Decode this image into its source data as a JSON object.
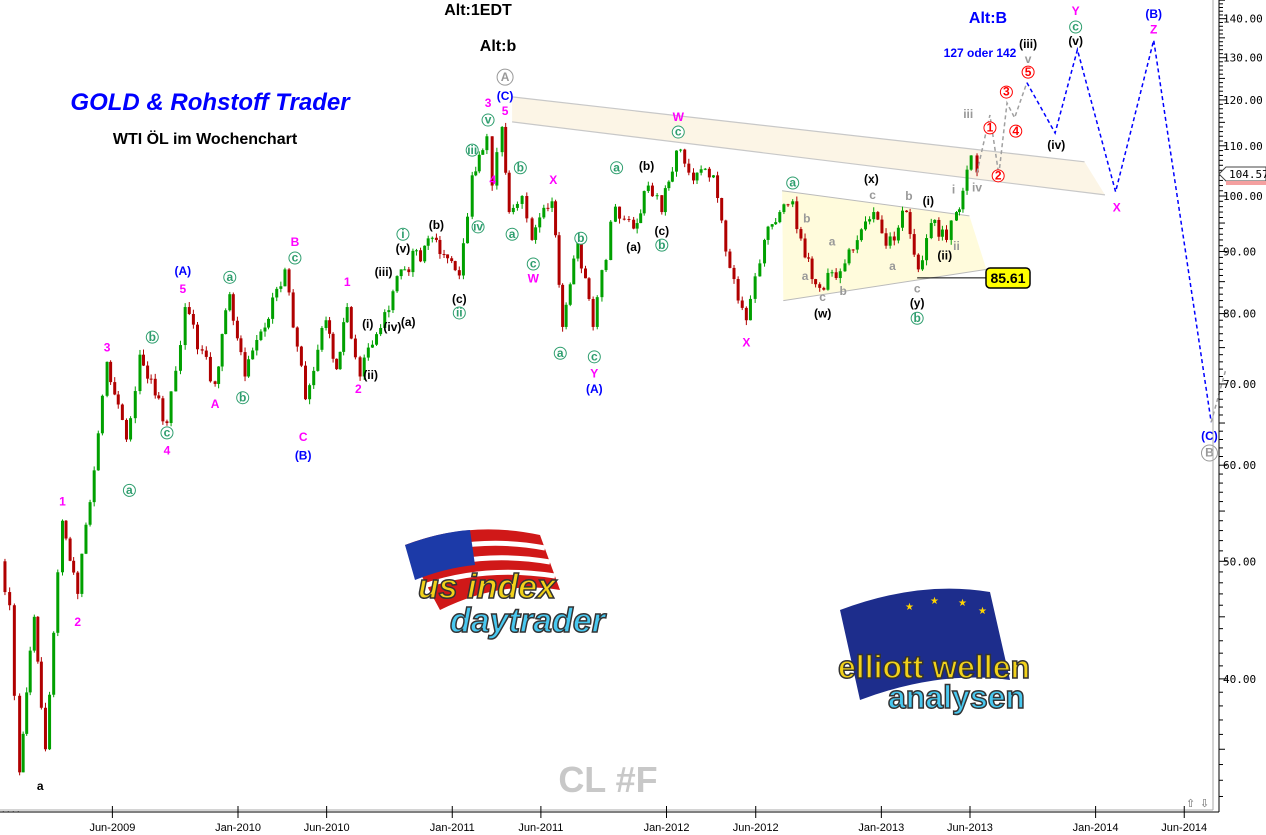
{
  "header": {
    "title": "GOLD & Rohstoff Trader",
    "subtitle": "WTI ÖL im Wochenchart",
    "alt_1": "Alt:1EDT",
    "alt_2": "Alt:b",
    "alt_3": "Alt:B",
    "target_note": "127 oder 142",
    "symbol": "CL #F",
    "level_box": "85.61",
    "last_price": "104.57",
    "scroll_up": "⇧",
    "scroll_down": "⇩",
    "ellipsis": ". . . ."
  },
  "logos": {
    "left": {
      "line1": "us index",
      "line2": "daytrader"
    },
    "right": {
      "line1": "elliott wellen",
      "line2": "analysen"
    }
  },
  "colors": {
    "up_candle": "#00a000",
    "down_candle": "#b00000",
    "magenta": "#ff00ff",
    "blue": "#0000ff",
    "green": "#2e9e6e",
    "gray": "#999999",
    "red": "#ff0000",
    "black": "#000000",
    "level_box_fill": "#ffff00"
  },
  "chart_data": {
    "type": "candlestick",
    "title": "GOLD & Rohstoff Trader",
    "subtitle": "WTI ÖL im Wochenchart",
    "scale": "log",
    "ylim": [
      30,
      145
    ],
    "y_ticks": [
      40,
      50,
      60,
      70,
      80,
      90,
      100,
      110,
      120,
      130,
      140
    ],
    "y_tick_labels": [
      "40.00",
      "50.00",
      "60.00",
      "70.00",
      "80.00",
      "90.00",
      "100.00",
      "110.00",
      "120.00",
      "130.00",
      "140.00"
    ],
    "x_ticks": [
      {
        "label": "Jun-2009",
        "date": "2009-06-01"
      },
      {
        "label": "Jan-2010",
        "date": "2010-01-01"
      },
      {
        "label": "Jun-2010",
        "date": "2010-06-01"
      },
      {
        "label": "Jan-2011",
        "date": "2011-01-01"
      },
      {
        "label": "Jun-2011",
        "date": "2011-06-01"
      },
      {
        "label": "Jan-2012",
        "date": "2012-01-01"
      },
      {
        "label": "Jun-2012",
        "date": "2012-06-01"
      },
      {
        "label": "Jan-2013",
        "date": "2013-01-01"
      },
      {
        "label": "Jun-2013",
        "date": "2013-06-01"
      },
      {
        "label": "Jan-2014",
        "date": "2014-01-01"
      },
      {
        "label": "Jun-2014",
        "date": "2014-06-01"
      }
    ],
    "grid": false,
    "last_price": 104.57,
    "support_level": 85.61,
    "price_path": [
      [
        "2008-11-22",
        50
      ],
      [
        "2008-12-08",
        46
      ],
      [
        "2008-12-25",
        33.5
      ],
      [
        "2009-01-19",
        45
      ],
      [
        "2009-02-07",
        35
      ],
      [
        "2009-03-08",
        54
      ],
      [
        "2009-04-03",
        47
      ],
      [
        "2009-05-23",
        73
      ],
      [
        "2009-06-25",
        63
      ],
      [
        "2009-07-18",
        74
      ],
      [
        "2009-09-02",
        65
      ],
      [
        "2009-10-03",
        81
      ],
      [
        "2009-11-23",
        70
      ],
      [
        "2009-12-18",
        83
      ],
      [
        "2010-01-13",
        71
      ],
      [
        "2010-03-22",
        87
      ],
      [
        "2010-04-26",
        68
      ],
      [
        "2010-05-31",
        79
      ],
      [
        "2010-06-18",
        72
      ],
      [
        "2010-07-06",
        81
      ],
      [
        "2010-07-28",
        71
      ],
      [
        "2010-10-06",
        87
      ],
      [
        "2010-12-05",
        92
      ],
      [
        "2011-01-13",
        86
      ],
      [
        "2011-02-04",
        104
      ],
      [
        "2011-03-01",
        112
      ],
      [
        "2011-03-10",
        102
      ],
      [
        "2011-03-27",
        114
      ],
      [
        "2011-04-08",
        97
      ],
      [
        "2011-04-30",
        100
      ],
      [
        "2011-05-17",
        92
      ],
      [
        "2011-06-20",
        99
      ],
      [
        "2011-07-08",
        78
      ],
      [
        "2011-08-03",
        92
      ],
      [
        "2011-08-29",
        78
      ],
      [
        "2011-10-06",
        98
      ],
      [
        "2011-11-06",
        94
      ],
      [
        "2011-12-01",
        102
      ],
      [
        "2011-12-24",
        97
      ],
      [
        "2012-01-18",
        109
      ],
      [
        "2012-02-16",
        103
      ],
      [
        "2012-03-21",
        104
      ],
      [
        "2012-04-11",
        90
      ],
      [
        "2012-05-16",
        79
      ],
      [
        "2012-06-16",
        92
      ],
      [
        "2012-07-12",
        97
      ],
      [
        "2012-08-03",
        99
      ],
      [
        "2012-08-24",
        89
      ],
      [
        "2012-09-18",
        84
      ],
      [
        "2012-10-31",
        88
      ],
      [
        "2012-12-19",
        97
      ],
      [
        "2013-01-09",
        91
      ],
      [
        "2013-02-13",
        97
      ],
      [
        "2013-03-05",
        87
      ],
      [
        "2013-03-27",
        95
      ],
      [
        "2013-04-22",
        92
      ],
      [
        "2013-05-09",
        97
      ],
      [
        "2013-05-20",
        101
      ],
      [
        "2013-06-03",
        108
      ],
      [
        "2013-06-13",
        104.57
      ]
    ],
    "projection_gray": [
      [
        "2013-06-13",
        104.57
      ],
      [
        "2013-07-05",
        116.6
      ],
      [
        "2013-07-20",
        104.1
      ],
      [
        "2013-08-03",
        119.3
      ],
      [
        "2013-08-16",
        116
      ],
      [
        "2013-09-06",
        124
      ]
    ],
    "projection_blue": [
      [
        "2013-09-06",
        124
      ],
      [
        "2013-10-24",
        112.7
      ],
      [
        "2013-12-01",
        132
      ],
      [
        "2014-02-04",
        100.8
      ],
      [
        "2014-04-10",
        134.4
      ],
      [
        "2014-07-17",
        65.1
      ]
    ],
    "projection_gray_tail": [
      [
        "2014-07-17",
        65.1
      ],
      [
        "2014-08-11",
        72
      ]
    ],
    "channel": {
      "upper": [
        [
          "2011-04-13",
          120.7
        ],
        [
          "2013-12-13",
          106.7
        ]
      ],
      "lower": [
        [
          "2011-04-13",
          115.1
        ],
        [
          "2014-01-17",
          100.2
        ]
      ]
    },
    "triangle": {
      "upper": [
        [
          "2012-07-16",
          101
        ],
        [
          "2013-05-31",
          96.3
        ]
      ],
      "lower": [
        [
          "2012-07-18",
          82
        ],
        [
          "2013-06-29",
          87
        ]
      ]
    },
    "wave_labels": [
      {
        "t": "1",
        "d": "2009-03-08",
        "p": 55.9,
        "c": "magenta"
      },
      {
        "t": "2",
        "d": "2009-04-03",
        "p": 44.5,
        "c": "magenta"
      },
      {
        "t": "3",
        "d": "2009-05-23",
        "p": 74.9,
        "c": "magenta"
      },
      {
        "t": "c",
        "d": "2009-09-02",
        "p": 63.8,
        "c": "green",
        "circ": true
      },
      {
        "t": "4",
        "d": "2009-09-02",
        "p": 61.6,
        "c": "magenta"
      },
      {
        "t": "a",
        "d": "2009-06-30",
        "p": 57.2,
        "c": "green",
        "circ": true
      },
      {
        "t": "b",
        "d": "2009-08-08",
        "p": 76.5,
        "c": "green",
        "circ": true
      },
      {
        "t": "(A)",
        "d": "2009-09-29",
        "p": 86.6,
        "c": "blue"
      },
      {
        "t": "5",
        "d": "2009-09-29",
        "p": 83.7,
        "c": "magenta"
      },
      {
        "t": "a",
        "d": "2009-12-18",
        "p": 85.7,
        "c": "green",
        "circ": true
      },
      {
        "t": "A",
        "d": "2009-11-23",
        "p": 67.3,
        "c": "magenta"
      },
      {
        "t": "b",
        "d": "2010-01-09",
        "p": 68.2,
        "c": "green",
        "circ": true
      },
      {
        "t": "B",
        "d": "2010-04-08",
        "p": 91.5,
        "c": "magenta"
      },
      {
        "t": "c",
        "d": "2010-04-08",
        "p": 88.9,
        "c": "green",
        "circ": true
      },
      {
        "t": "C",
        "d": "2010-04-22",
        "p": 63.2,
        "c": "magenta"
      },
      {
        "t": "(B)",
        "d": "2010-04-22",
        "p": 61,
        "c": "blue"
      },
      {
        "t": "1",
        "d": "2010-07-06",
        "p": 84.8,
        "c": "magenta"
      },
      {
        "t": "2",
        "d": "2010-07-25",
        "p": 69.2,
        "c": "magenta"
      },
      {
        "t": "(i)",
        "d": "2010-08-10",
        "p": 78.3,
        "c": "black",
        "small": true
      },
      {
        "t": "(ii)",
        "d": "2010-08-15",
        "p": 71.1,
        "c": "black",
        "small": true
      },
      {
        "t": "(iii)",
        "d": "2010-09-06",
        "p": 86.4,
        "c": "black",
        "small": true
      },
      {
        "t": "(iv)",
        "d": "2010-09-21",
        "p": 77.9,
        "c": "black",
        "small": true
      },
      {
        "t": "(v)",
        "d": "2010-10-09",
        "p": 90.4,
        "c": "black",
        "small": true
      },
      {
        "t": "i",
        "d": "2010-10-09",
        "p": 93,
        "c": "green",
        "circ": true
      },
      {
        "t": "(a)",
        "d": "2010-10-18",
        "p": 78.6,
        "c": "black",
        "small": true
      },
      {
        "t": "(b)",
        "d": "2010-12-05",
        "p": 94.5,
        "c": "black",
        "small": true
      },
      {
        "t": "(c)",
        "d": "2011-01-13",
        "p": 82.1,
        "c": "black",
        "small": true
      },
      {
        "t": "ii",
        "d": "2011-01-13",
        "p": 80.1,
        "c": "green",
        "circ": true
      },
      {
        "t": "iii",
        "d": "2011-02-04",
        "p": 109.1,
        "c": "green",
        "circ": true
      },
      {
        "t": "iv",
        "d": "2011-02-14",
        "p": 94.3,
        "c": "green",
        "circ": true
      },
      {
        "t": "3",
        "d": "2011-03-03",
        "p": 119.1,
        "c": "magenta"
      },
      {
        "t": "v",
        "d": "2011-03-03",
        "p": 115.5,
        "c": "green",
        "circ": true
      },
      {
        "t": "4",
        "d": "2011-03-11",
        "p": 102.9,
        "c": "magenta"
      },
      {
        "t": "A",
        "d": "2011-04-01",
        "p": 125.3,
        "c": "gray",
        "circ": true,
        "big": true
      },
      {
        "t": "(C)",
        "d": "2011-04-01",
        "p": 120.7,
        "c": "blue"
      },
      {
        "t": "5",
        "d": "2011-04-01",
        "p": 117.3,
        "c": "magenta"
      },
      {
        "t": "b",
        "d": "2011-04-27",
        "p": 105.5,
        "c": "green",
        "circ": true
      },
      {
        "t": "a",
        "d": "2011-04-13",
        "p": 93,
        "c": "green",
        "circ": true
      },
      {
        "t": "c",
        "d": "2011-05-19",
        "p": 87.9,
        "c": "green",
        "circ": true
      },
      {
        "t": "W",
        "d": "2011-05-19",
        "p": 85.4,
        "c": "magenta"
      },
      {
        "t": "X",
        "d": "2011-06-22",
        "p": 102.9,
        "c": "magenta"
      },
      {
        "t": "a",
        "d": "2011-07-04",
        "p": 74.2,
        "c": "green",
        "circ": true
      },
      {
        "t": "b",
        "d": "2011-08-08",
        "p": 92.3,
        "c": "green",
        "circ": true
      },
      {
        "t": "c",
        "d": "2011-08-31",
        "p": 73.7,
        "c": "green",
        "circ": true
      },
      {
        "t": "Y",
        "d": "2011-08-31",
        "p": 71.3,
        "c": "magenta"
      },
      {
        "t": "(A)",
        "d": "2011-08-31",
        "p": 69.2,
        "c": "blue"
      },
      {
        "t": "a",
        "d": "2011-10-08",
        "p": 105.5,
        "c": "green",
        "circ": true
      },
      {
        "t": "(a)",
        "d": "2011-11-06",
        "p": 90.6,
        "c": "black",
        "small": true
      },
      {
        "t": "(b)",
        "d": "2011-11-28",
        "p": 105.7,
        "c": "black",
        "small": true
      },
      {
        "t": "(c)",
        "d": "2011-12-24",
        "p": 93.4,
        "c": "black",
        "small": true
      },
      {
        "t": "b",
        "d": "2011-12-24",
        "p": 91.1,
        "c": "green",
        "circ": true
      },
      {
        "t": "W",
        "d": "2012-01-21",
        "p": 116,
        "c": "magenta"
      },
      {
        "t": "c",
        "d": "2012-01-21",
        "p": 112.9,
        "c": "green",
        "circ": true
      },
      {
        "t": "X",
        "d": "2012-05-16",
        "p": 75.6,
        "c": "magenta"
      },
      {
        "t": "a",
        "d": "2012-08-03",
        "p": 102.5,
        "c": "green",
        "circ": true
      },
      {
        "t": "b",
        "d": "2012-08-27",
        "p": 95.7,
        "c": "gray"
      },
      {
        "t": "a",
        "d": "2012-10-09",
        "p": 91.6,
        "c": "gray"
      },
      {
        "t": "a",
        "d": "2012-08-24",
        "p": 85.8,
        "c": "gray"
      },
      {
        "t": "c",
        "d": "2012-09-23",
        "p": 82.4,
        "c": "gray"
      },
      {
        "t": "b",
        "d": "2012-10-28",
        "p": 83.4,
        "c": "gray"
      },
      {
        "t": "(w)",
        "d": "2012-09-23",
        "p": 79.9,
        "c": "black",
        "small": true
      },
      {
        "t": "(x)",
        "d": "2012-12-15",
        "p": 103.1,
        "c": "black",
        "small": true
      },
      {
        "t": "c",
        "d": "2012-12-17",
        "p": 100,
        "c": "gray"
      },
      {
        "t": "b",
        "d": "2013-02-17",
        "p": 99.8,
        "c": "gray"
      },
      {
        "t": "a",
        "d": "2013-01-20",
        "p": 87.4,
        "c": "gray"
      },
      {
        "t": "c",
        "d": "2013-03-03",
        "p": 83.8,
        "c": "gray"
      },
      {
        "t": "(y)",
        "d": "2013-03-03",
        "p": 81.5,
        "c": "black",
        "small": true
      },
      {
        "t": "b",
        "d": "2013-03-03",
        "p": 79.3,
        "c": "green",
        "circ": true
      },
      {
        "t": "(i)",
        "d": "2013-03-22",
        "p": 98.9,
        "c": "black",
        "small": true
      },
      {
        "t": "(ii)",
        "d": "2013-04-19",
        "p": 89.2,
        "c": "black",
        "small": true
      },
      {
        "t": "ii",
        "d": "2013-05-09",
        "p": 90.8,
        "c": "gray"
      },
      {
        "t": "i",
        "d": "2013-05-04",
        "p": 101.1,
        "c": "gray"
      },
      {
        "t": "iii",
        "d": "2013-05-29",
        "p": 116.6,
        "c": "gray"
      },
      {
        "t": "iv",
        "d": "2013-06-13",
        "p": 101.5,
        "c": "gray"
      },
      {
        "t": "1",
        "d": "2013-07-05",
        "p": 113.8,
        "c": "red",
        "circ": true
      },
      {
        "t": "2",
        "d": "2013-07-19",
        "p": 103.9,
        "c": "red",
        "circ": true
      },
      {
        "t": "3",
        "d": "2013-08-02",
        "p": 121.8,
        "c": "red",
        "circ": true
      },
      {
        "t": "4",
        "d": "2013-08-18",
        "p": 113.1,
        "c": "red",
        "circ": true
      },
      {
        "t": "5",
        "d": "2013-09-08",
        "p": 126.5,
        "c": "red",
        "circ": true
      },
      {
        "t": "v",
        "d": "2013-09-08",
        "p": 129.5,
        "c": "gray"
      },
      {
        "t": "(iii)",
        "d": "2013-09-08",
        "p": 133.2,
        "c": "black",
        "small": true
      },
      {
        "t": "(iv)",
        "d": "2013-10-26",
        "p": 110,
        "c": "black",
        "small": true
      },
      {
        "t": "(v)",
        "d": "2013-11-28",
        "p": 134,
        "c": "black",
        "small": true
      },
      {
        "t": "c",
        "d": "2013-11-28",
        "p": 137.8,
        "c": "green",
        "circ": true
      },
      {
        "t": "Y",
        "d": "2013-11-28",
        "p": 141.8,
        "c": "magenta"
      },
      {
        "t": "X",
        "d": "2014-02-06",
        "p": 97.7,
        "c": "magenta"
      },
      {
        "t": "Z",
        "d": "2014-04-10",
        "p": 137,
        "c": "magenta"
      },
      {
        "t": "(B)",
        "d": "2014-04-10",
        "p": 141,
        "c": "blue"
      },
      {
        "t": "(C)",
        "d": "2014-07-14",
        "p": 63.3,
        "c": "blue"
      },
      {
        "t": "B",
        "d": "2014-07-14",
        "p": 61.4,
        "c": "gray",
        "circ": true,
        "big": true
      },
      {
        "t": "a",
        "d": "2009-01-29",
        "p": 32.6,
        "c": "black",
        "huge": true
      }
    ]
  }
}
